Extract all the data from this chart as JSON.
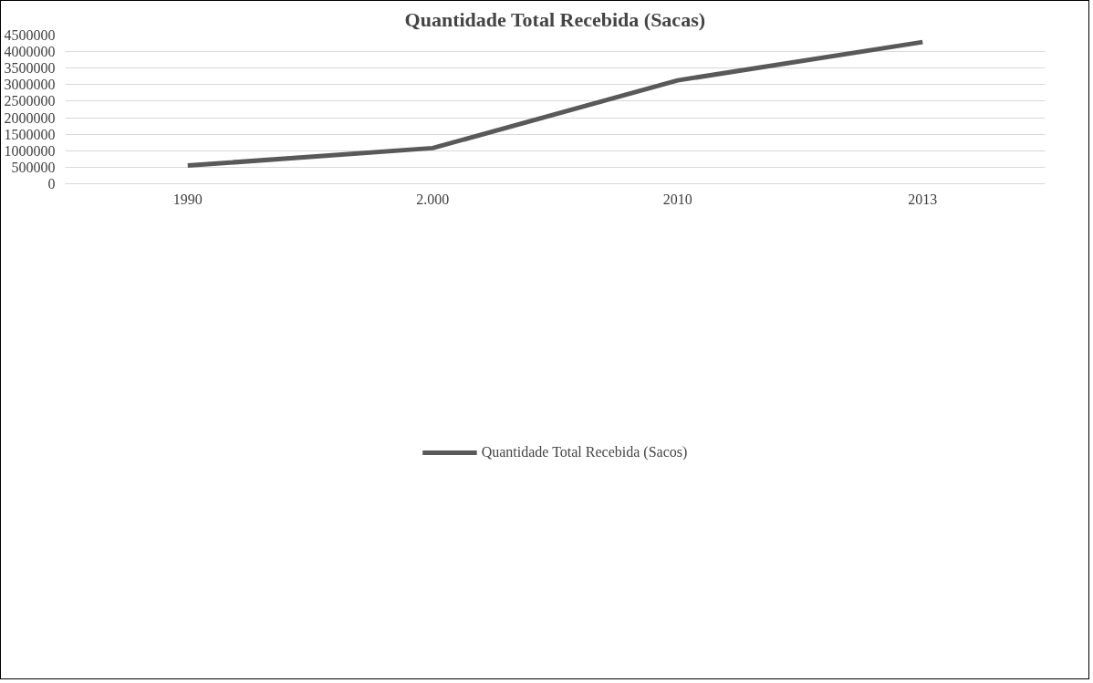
{
  "chart_data": {
    "type": "line",
    "title": "Quantidade Total Recebida (Sacas)",
    "categories": [
      "1990",
      "2.000",
      "2010",
      "2013"
    ],
    "series": [
      {
        "name": "Quantidade Total Recebida (Sacos)",
        "color": "#595959",
        "values": [
          550000,
          1080000,
          3130000,
          4290000
        ]
      }
    ],
    "ylim": [
      0,
      4500000
    ],
    "yticks": [
      0,
      500000,
      1000000,
      1500000,
      2000000,
      2500000,
      3000000,
      3500000,
      4000000,
      4500000
    ],
    "grid": "y",
    "legend": "bottom",
    "marker": "none",
    "line_style": "solid"
  }
}
